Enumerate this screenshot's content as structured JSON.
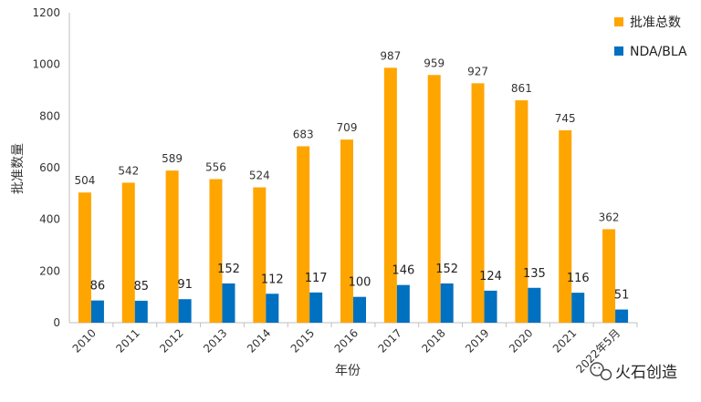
{
  "chart_data": {
    "type": "bar",
    "categories": [
      "2010",
      "2011",
      "2012",
      "2013",
      "2014",
      "2015",
      "2016",
      "2017",
      "2018",
      "2019",
      "2020",
      "2021",
      "2022年5月"
    ],
    "series": [
      {
        "name": "批准总数",
        "color": "#FFA500",
        "values": [
          504,
          542,
          589,
          556,
          524,
          683,
          709,
          987,
          959,
          927,
          861,
          745,
          362
        ]
      },
      {
        "name": "NDA/BLA",
        "color": "#0070C0",
        "values": [
          86,
          85,
          91,
          152,
          112,
          117,
          100,
          146,
          152,
          124,
          135,
          116,
          51
        ]
      }
    ],
    "ylim": [
      0,
      1200
    ],
    "yticks": [
      "0",
      "200",
      "400",
      "600",
      "800",
      "1000",
      "1200"
    ],
    "xlabel": "年份",
    "ylabel": "批准数量",
    "legend_position": "top-right",
    "grid": false
  },
  "watermark": {
    "text": "火石创造"
  }
}
